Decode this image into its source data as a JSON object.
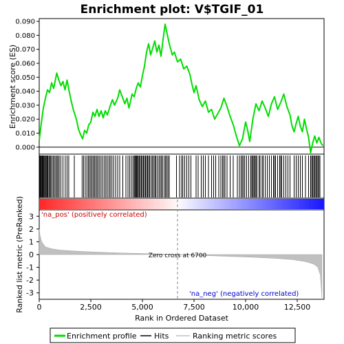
{
  "chart_data": [
    {
      "type": "line",
      "title": "Enrichment plot: V$TGIF_01",
      "ylabel": "Enrichment score (ES)",
      "ylim": [
        -0.005,
        0.092
      ],
      "yticks": [
        "0.000",
        "0.010",
        "0.020",
        "0.030",
        "0.040",
        "0.050",
        "0.060",
        "0.070",
        "0.080",
        "0.090"
      ],
      "xlim": [
        0,
        13800
      ],
      "grid": false,
      "series": [
        {
          "name": "Enrichment profile",
          "color": "#00dd00",
          "points": [
            [
              0,
              0.005
            ],
            [
              100,
              0.017
            ],
            [
              200,
              0.028
            ],
            [
              300,
              0.035
            ],
            [
              400,
              0.041
            ],
            [
              500,
              0.039
            ],
            [
              600,
              0.046
            ],
            [
              700,
              0.042
            ],
            [
              850,
              0.053
            ],
            [
              950,
              0.048
            ],
            [
              1050,
              0.044
            ],
            [
              1150,
              0.047
            ],
            [
              1250,
              0.041
            ],
            [
              1350,
              0.048
            ],
            [
              1450,
              0.04
            ],
            [
              1550,
              0.033
            ],
            [
              1650,
              0.027
            ],
            [
              1800,
              0.02
            ],
            [
              1900,
              0.013
            ],
            [
              2000,
              0.009
            ],
            [
              2100,
              0.006
            ],
            [
              2200,
              0.012
            ],
            [
              2300,
              0.01
            ],
            [
              2400,
              0.016
            ],
            [
              2500,
              0.018
            ],
            [
              2600,
              0.025
            ],
            [
              2700,
              0.022
            ],
            [
              2800,
              0.027
            ],
            [
              2900,
              0.022
            ],
            [
              3000,
              0.026
            ],
            [
              3100,
              0.021
            ],
            [
              3200,
              0.026
            ],
            [
              3300,
              0.023
            ],
            [
              3450,
              0.03
            ],
            [
              3550,
              0.034
            ],
            [
              3650,
              0.03
            ],
            [
              3800,
              0.035
            ],
            [
              3900,
              0.041
            ],
            [
              4000,
              0.037
            ],
            [
              4150,
              0.031
            ],
            [
              4250,
              0.035
            ],
            [
              4350,
              0.028
            ],
            [
              4500,
              0.038
            ],
            [
              4600,
              0.036
            ],
            [
              4700,
              0.042
            ],
            [
              4800,
              0.046
            ],
            [
              4900,
              0.043
            ],
            [
              5000,
              0.051
            ],
            [
              5100,
              0.058
            ],
            [
              5200,
              0.068
            ],
            [
              5300,
              0.074
            ],
            [
              5400,
              0.066
            ],
            [
              5500,
              0.071
            ],
            [
              5600,
              0.076
            ],
            [
              5700,
              0.068
            ],
            [
              5800,
              0.073
            ],
            [
              5900,
              0.065
            ],
            [
              6000,
              0.077
            ],
            [
              6100,
              0.088
            ],
            [
              6200,
              0.081
            ],
            [
              6300,
              0.074
            ],
            [
              6450,
              0.066
            ],
            [
              6550,
              0.068
            ],
            [
              6700,
              0.061
            ],
            [
              6850,
              0.063
            ],
            [
              7000,
              0.056
            ],
            [
              7150,
              0.058
            ],
            [
              7300,
              0.052
            ],
            [
              7400,
              0.045
            ],
            [
              7500,
              0.039
            ],
            [
              7600,
              0.044
            ],
            [
              7750,
              0.034
            ],
            [
              7900,
              0.029
            ],
            [
              8050,
              0.033
            ],
            [
              8200,
              0.025
            ],
            [
              8350,
              0.027
            ],
            [
              8500,
              0.02
            ],
            [
              8650,
              0.024
            ],
            [
              8800,
              0.028
            ],
            [
              8950,
              0.035
            ],
            [
              9100,
              0.029
            ],
            [
              9250,
              0.022
            ],
            [
              9400,
              0.016
            ],
            [
              9550,
              0.008
            ],
            [
              9700,
              0.001
            ],
            [
              9850,
              0.006
            ],
            [
              10000,
              0.018
            ],
            [
              10100,
              0.012
            ],
            [
              10200,
              0.004
            ],
            [
              10350,
              0.02
            ],
            [
              10500,
              0.031
            ],
            [
              10650,
              0.026
            ],
            [
              10800,
              0.033
            ],
            [
              10950,
              0.028
            ],
            [
              11100,
              0.022
            ],
            [
              11250,
              0.031
            ],
            [
              11400,
              0.036
            ],
            [
              11550,
              0.027
            ],
            [
              11700,
              0.032
            ],
            [
              11850,
              0.038
            ],
            [
              12000,
              0.029
            ],
            [
              12150,
              0.023
            ],
            [
              12250,
              0.015
            ],
            [
              12350,
              0.011
            ],
            [
              12450,
              0.017
            ],
            [
              12550,
              0.022
            ],
            [
              12650,
              0.015
            ],
            [
              12750,
              0.011
            ],
            [
              12850,
              0.02
            ],
            [
              12950,
              0.013
            ],
            [
              13050,
              0.007
            ],
            [
              13150,
              -0.004
            ],
            [
              13250,
              0.003
            ],
            [
              13350,
              0.008
            ],
            [
              13450,
              0.003
            ],
            [
              13550,
              0.007
            ],
            [
              13650,
              0.003
            ],
            [
              13750,
              0.001
            ]
          ]
        }
      ],
      "baseline_y": 0
    },
    {
      "type": "heatmap",
      "name": "hits",
      "legend_label": "Hits",
      "hit_positions": [
        30,
        60,
        90,
        110,
        150,
        180,
        220,
        260,
        300,
        340,
        380,
        420,
        470,
        520,
        560,
        620,
        680,
        740,
        800,
        860,
        910,
        970,
        1050,
        1150,
        1260,
        1350,
        1430,
        1700,
        2080,
        2150,
        2230,
        2310,
        2380,
        2440,
        2500,
        2560,
        2620,
        2680,
        2740,
        2800,
        2860,
        2930,
        3000,
        3080,
        3160,
        3230,
        3300,
        3380,
        3440,
        3520,
        3600,
        3700,
        3800,
        3900,
        4050,
        4200,
        4300,
        4380,
        4460,
        4540,
        4600,
        4640,
        4680,
        4720,
        4760,
        4800,
        4850,
        4900,
        4950,
        5000,
        5050,
        5100,
        5150,
        5200,
        5250,
        5300,
        5350,
        5420,
        5480,
        5540,
        5600,
        5650,
        5720,
        5800,
        5860,
        5920,
        5980,
        6060,
        6120,
        6180,
        6240,
        6300,
        6650,
        6800,
        6900,
        6960,
        7050,
        7150,
        7250,
        7350,
        7600,
        7700,
        7850,
        7950,
        8050,
        8200,
        8350,
        8450,
        8550,
        8700,
        8800,
        8880,
        8940,
        9000,
        9100,
        9250,
        9400,
        9600,
        9700,
        9780,
        9840,
        9900,
        9960,
        10050,
        10150,
        10250,
        10300,
        10350,
        10400,
        10450,
        10500,
        10550,
        10650,
        10700,
        10800,
        10850,
        10950,
        11050,
        11150,
        11250,
        11350,
        11400,
        11450,
        11550,
        11650,
        11700,
        11750,
        11850,
        11950,
        12050,
        12150,
        12350,
        12450,
        12550,
        12650,
        12750,
        12900,
        13050,
        13150,
        13200,
        13250,
        13300,
        13350,
        13400,
        13450,
        13500,
        13550,
        13600
      ]
    },
    {
      "type": "area",
      "name": "ranked list metric",
      "legend_label": "Ranking metric scores",
      "ylabel": "Ranked list metric (PreRanked)",
      "xlabel": "Rank in Ordered Dataset",
      "ylim": [
        -3.5,
        3.5
      ],
      "yticks": [
        "-3",
        "-2",
        "-1",
        "0",
        "1",
        "2",
        "3"
      ],
      "xlim": [
        0,
        13800
      ],
      "xticks": [
        "0",
        "2,500",
        "5,000",
        "7,500",
        "10,000",
        "12,500"
      ],
      "xtick_values": [
        0,
        2500,
        5000,
        7500,
        10000,
        12500
      ],
      "color": "#c0c0c0",
      "points": [
        [
          0,
          2.0
        ],
        [
          40,
          1.5
        ],
        [
          120,
          1.0
        ],
        [
          300,
          0.6
        ],
        [
          600,
          0.45
        ],
        [
          1000,
          0.35
        ],
        [
          2000,
          0.25
        ],
        [
          3000,
          0.18
        ],
        [
          4000,
          0.12
        ],
        [
          5000,
          0.08
        ],
        [
          6000,
          0.04
        ],
        [
          6700,
          0.0
        ],
        [
          7500,
          -0.05
        ],
        [
          8500,
          -0.1
        ],
        [
          9500,
          -0.16
        ],
        [
          10500,
          -0.22
        ],
        [
          11500,
          -0.3
        ],
        [
          12300,
          -0.4
        ],
        [
          12900,
          -0.55
        ],
        [
          13300,
          -0.75
        ],
        [
          13500,
          -1.0
        ],
        [
          13620,
          -1.6
        ],
        [
          13700,
          -3.4
        ]
      ],
      "annotations": {
        "pos_label": "'na_pos' (positively correlated)",
        "neg_label": "'na_neg' (negatively correlated)",
        "zero_cross": "Zero cross at 6700",
        "zero_cross_x": 6700
      }
    }
  ],
  "legend": {
    "items": [
      {
        "label": "Enrichment profile",
        "color": "#00dd00"
      },
      {
        "label": "Hits",
        "color": "#000000"
      },
      {
        "label": "Ranking metric scores",
        "color": "#c0c0c0"
      }
    ]
  }
}
